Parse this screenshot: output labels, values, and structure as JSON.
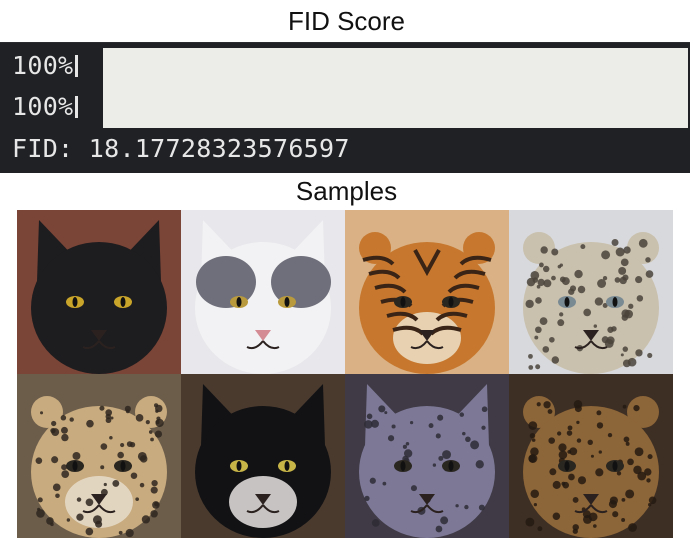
{
  "fid_section": {
    "title": "FID Score",
    "progress_lines": [
      {
        "label": "100%",
        "progress": 1.0
      },
      {
        "label": "100%",
        "progress": 1.0
      }
    ],
    "fid_label": "FID:",
    "fid_value": "18.17728323576597"
  },
  "samples_section": {
    "title": "Samples",
    "images": [
      {
        "subject": "black-cat",
        "colors": {
          "bg": "#7a4436",
          "fur": "#1d1c1f",
          "eye": "#c9a52a"
        }
      },
      {
        "subject": "white-gray-cat",
        "colors": {
          "bg": "#e8e8ec",
          "fur": "#f2f2f4",
          "patch": "#6e6f7a",
          "eye": "#b99a3c",
          "nose": "#d48b93"
        }
      },
      {
        "subject": "tiger",
        "colors": {
          "bg": "#d9b184",
          "fur": "#c7782e",
          "stripe": "#3a2416",
          "light": "#ece0c8"
        }
      },
      {
        "subject": "cheetah",
        "colors": {
          "bg": "#d8d9dc",
          "fur": "#c9c0ad",
          "spot": "#4a433b",
          "eye": "#7a8a93"
        }
      },
      {
        "subject": "cheetah",
        "colors": {
          "bg": "#6c5d4b",
          "fur": "#c8ab7e",
          "spot": "#2e261e",
          "light": "#e6dccb"
        }
      },
      {
        "subject": "black-white-cat",
        "colors": {
          "bg": "#4a3a2e",
          "fur": "#121214",
          "light": "#e6e3e0",
          "eye": "#c7b548"
        }
      },
      {
        "subject": "gray-fluffy-cat",
        "colors": {
          "bg": "#3f3a45",
          "fur": "#7c7896",
          "dark": "#2e2b35"
        }
      },
      {
        "subject": "leopard",
        "colors": {
          "bg": "#3e2f24",
          "fur": "#8c6538",
          "spot": "#241a12"
        }
      }
    ]
  }
}
